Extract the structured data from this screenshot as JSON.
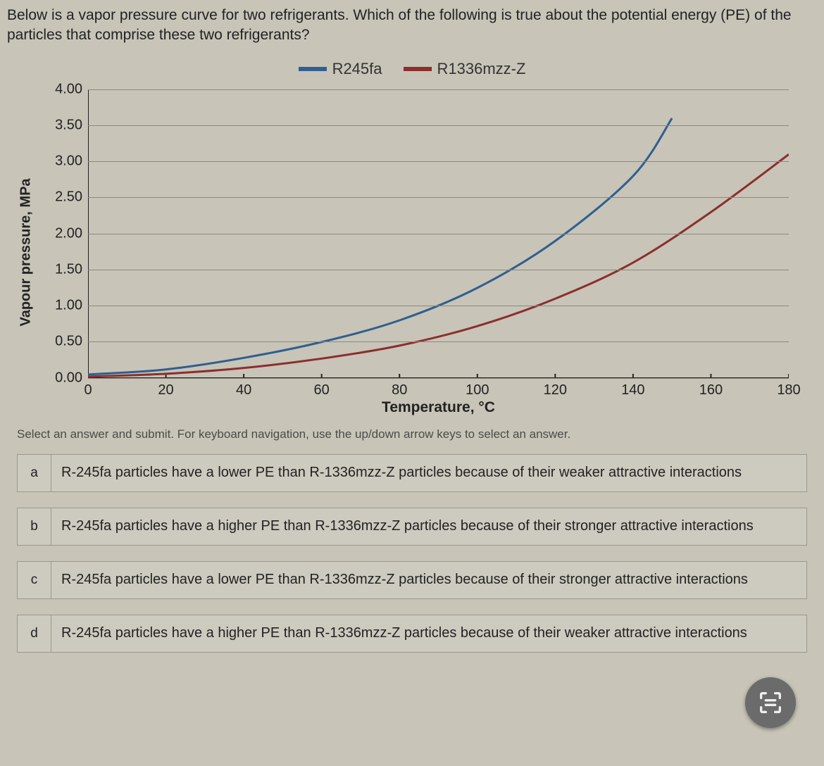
{
  "question": "Below is a vapor pressure curve for two refrigerants. Which of the following is true about the potential energy (PE) of the particles that comprise these two refrigerants?",
  "chart": {
    "type": "line",
    "legend": [
      {
        "label": "R245fa",
        "color": "#2f5f8f"
      },
      {
        "label": "R1336mzz-Z",
        "color": "#8b2e2e"
      }
    ],
    "ylabel": "Vapour pressure, MPa",
    "xlabel": "Temperature, °C",
    "xlim": [
      0,
      180
    ],
    "ylim": [
      0.0,
      4.0
    ],
    "ytick_step": 0.5,
    "xtick_step": 20,
    "yticks_labels": [
      "0.00",
      "0.50",
      "1.00",
      "1.50",
      "2.00",
      "2.50",
      "3.00",
      "3.50",
      "4.00"
    ],
    "xticks_labels": [
      "0",
      "20",
      "40",
      "60",
      "80",
      "100",
      "120",
      "140",
      "160",
      "180"
    ],
    "line_width": 3,
    "grid_color": "#8a8a7e",
    "background_color": "#c8c4b8",
    "series": {
      "R245fa": {
        "color": "#2f5f8f",
        "x": [
          0,
          20,
          40,
          60,
          80,
          100,
          120,
          140,
          150
        ],
        "y": [
          0.05,
          0.12,
          0.28,
          0.5,
          0.8,
          1.25,
          1.9,
          2.8,
          3.6
        ]
      },
      "R1336mzz-Z": {
        "color": "#8b2e2e",
        "x": [
          0,
          20,
          40,
          60,
          80,
          100,
          120,
          140,
          160,
          180
        ],
        "y": [
          0.02,
          0.06,
          0.14,
          0.27,
          0.45,
          0.72,
          1.1,
          1.6,
          2.3,
          3.1
        ]
      }
    }
  },
  "instruction": "Select an answer and submit. For keyboard navigation, use the up/down arrow keys to select an answer.",
  "options": [
    {
      "letter": "a",
      "text": "R-245fa particles have a lower PE than R-1336mzz-Z particles because of their weaker attractive interactions"
    },
    {
      "letter": "b",
      "text": "R-245fa particles have a higher PE than R-1336mzz-Z particles because of their stronger attractive interactions"
    },
    {
      "letter": "c",
      "text": "R-245fa particles have a lower PE than R-1336mzz-Z particles because of their stronger attractive interactions"
    },
    {
      "letter": "d",
      "text": "R-245fa particles have a higher PE than R-1336mzz-Z particles because of their weaker attractive interactions"
    }
  ]
}
